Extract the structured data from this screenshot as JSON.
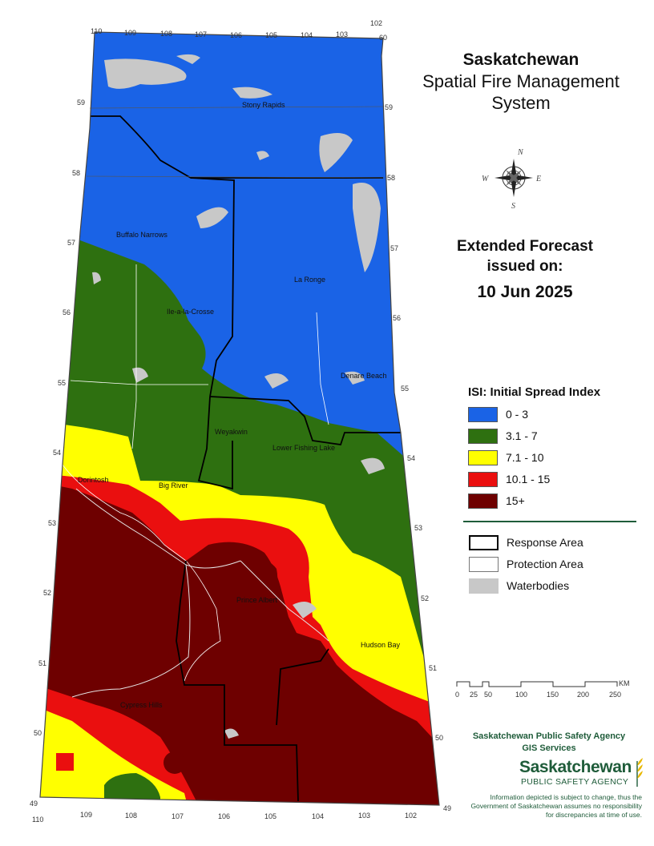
{
  "title": {
    "line1": "Saskatchewan",
    "line2": "Spatial Fire Management",
    "line3": "System"
  },
  "forecast": {
    "line1": "Extended Forecast",
    "line2": "issued on:",
    "date": "10 Jun 2025"
  },
  "legend": {
    "title": "ISI: Initial Spread Index",
    "classes": [
      {
        "label": "0 - 3",
        "color": "#1a63e6"
      },
      {
        "label": "3.1 - 7",
        "color": "#2e7010"
      },
      {
        "label": "7.1 - 10",
        "color": "#ffff00"
      },
      {
        "label": "10.1 - 15",
        "color": "#ea0f0f"
      },
      {
        "label": "15+",
        "color": "#6e0000"
      }
    ],
    "features": [
      {
        "label": "Response Area"
      },
      {
        "label": "Protection Area"
      },
      {
        "label": "Waterbodies",
        "color": "#c8c8c8"
      }
    ]
  },
  "scale": {
    "ticks": [
      "0",
      "25",
      "50",
      "100",
      "150",
      "200",
      "250"
    ],
    "unit": "KM"
  },
  "credit": {
    "line1": "Saskatchewan Public Safety Agency",
    "line2": "GIS  Services"
  },
  "logo": {
    "name": "Saskatchewan",
    "sub": "PUBLIC SAFETY AGENCY"
  },
  "disclaimer": "Information depicted is subject to change, thus the Government of Saskatchewan assumes no responsibility for discrepancies at time of use.",
  "graticule": {
    "longitudes_top": [
      "110",
      "109",
      "108",
      "107",
      "106",
      "105",
      "104",
      "103",
      "102"
    ],
    "longitudes_bottom": [
      "110",
      "109",
      "108",
      "107",
      "106",
      "105",
      "104",
      "103",
      "102"
    ],
    "latitudes": [
      "60",
      "59",
      "58",
      "57",
      "56",
      "55",
      "54",
      "53",
      "52",
      "51",
      "50",
      "49"
    ]
  },
  "places": [
    {
      "name": "Stony Rapids"
    },
    {
      "name": "Buffalo Narrows"
    },
    {
      "name": "La Ronge"
    },
    {
      "name": "Ile-a-la-Crosse"
    },
    {
      "name": "Denare Beach"
    },
    {
      "name": "Weyakwin"
    },
    {
      "name": "Lower Fishing Lake"
    },
    {
      "name": "Dorintosh"
    },
    {
      "name": "Big River"
    },
    {
      "name": "Prince Albert"
    },
    {
      "name": "Hudson Bay"
    },
    {
      "name": "Cypress Hills"
    }
  ],
  "compass": {
    "n": "N",
    "e": "E",
    "s": "S",
    "w": "W"
  }
}
